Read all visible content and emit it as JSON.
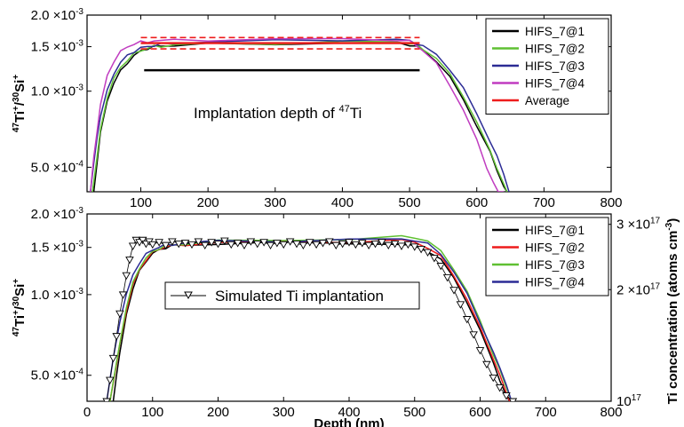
{
  "colors": {
    "black": "#000000",
    "green": "#5fc032",
    "navy": "#2c2c95",
    "magenta": "#c03cc0",
    "red": "#ee1c1c"
  },
  "chart_data": [
    {
      "type": "line",
      "panel": "top",
      "ylabel_html": "47Ti+/30Si+",
      "ylabel_parts": [
        "47",
        "Ti",
        "+",
        "/",
        "30",
        "Si",
        "+"
      ],
      "xlim": [
        20,
        800
      ],
      "ylim": [
        0.0004,
        0.002
      ],
      "yscale": "log",
      "xticks": [
        100,
        200,
        300,
        400,
        500,
        600,
        700,
        800
      ],
      "xtick_labels": [
        "100",
        "200",
        "300",
        "400",
        "500",
        "600",
        "700",
        "800"
      ],
      "yticks": [
        0.0005,
        0.001,
        0.0015,
        0.002
      ],
      "ytick_labels": [
        {
          "mantissa": "5.0",
          "exponent": "-4"
        },
        {
          "mantissa": "1.0",
          "exponent": "-3"
        },
        {
          "mantissa": "1.5",
          "exponent": "-3"
        },
        {
          "mantissa": "2.0",
          "exponent": "-3"
        }
      ],
      "series": [
        {
          "name": "HIFS_7@1",
          "color": "#000000",
          "x": [
            30,
            35,
            40,
            50,
            60,
            70,
            80,
            90,
            100,
            110,
            120,
            130,
            150,
            200,
            300,
            400,
            480,
            500,
            510,
            520,
            540,
            560,
            580,
            600,
            620,
            630,
            640,
            645
          ],
          "y": [
            0.0004,
            0.00052,
            0.00068,
            0.00092,
            0.00108,
            0.0012,
            0.0013,
            0.00138,
            0.00144,
            0.00148,
            0.0015,
            0.00151,
            0.00152,
            0.00153,
            0.00154,
            0.00155,
            0.00155,
            0.00153,
            0.0015,
            0.00145,
            0.00132,
            0.00113,
            0.00093,
            0.00073,
            0.00057,
            0.00049,
            0.00042,
            0.0004
          ]
        },
        {
          "name": "HIFS_7@2",
          "color": "#5fc032",
          "x": [
            28,
            35,
            40,
            50,
            60,
            70,
            80,
            90,
            100,
            110,
            120,
            130,
            150,
            200,
            300,
            400,
            480,
            500,
            510,
            520,
            540,
            560,
            580,
            600,
            620,
            630,
            640,
            645
          ],
          "y": [
            0.0004,
            0.00055,
            0.0007,
            0.00095,
            0.00112,
            0.00124,
            0.00133,
            0.0014,
            0.00145,
            0.00148,
            0.0015,
            0.00151,
            0.00152,
            0.00154,
            0.00155,
            0.00156,
            0.00157,
            0.00155,
            0.00152,
            0.00147,
            0.00135,
            0.00116,
            0.00096,
            0.00075,
            0.00058,
            0.0005,
            0.00043,
            0.0004
          ]
        },
        {
          "name": "HIFS_7@3",
          "color": "#2c2c95",
          "x": [
            25,
            30,
            35,
            40,
            50,
            60,
            70,
            80,
            90,
            100,
            110,
            120,
            130,
            150,
            200,
            300,
            400,
            480,
            500,
            510,
            520,
            540,
            560,
            580,
            600,
            620,
            630,
            640,
            648
          ],
          "y": [
            0.0004,
            0.00052,
            0.00066,
            0.0008,
            0.001,
            0.00118,
            0.0013,
            0.00138,
            0.00144,
            0.00148,
            0.0015,
            0.00152,
            0.00153,
            0.00155,
            0.00157,
            0.00158,
            0.0016,
            0.0016,
            0.00158,
            0.00155,
            0.0015,
            0.0014,
            0.00122,
            0.00102,
            0.00082,
            0.00063,
            0.00055,
            0.00047,
            0.0004
          ]
        },
        {
          "name": "HIFS_7@4",
          "color": "#c03cc0",
          "x": [
            25,
            30,
            35,
            40,
            50,
            60,
            70,
            80,
            90,
            100,
            110,
            120,
            150,
            200,
            300,
            400,
            480,
            500,
            510,
            520,
            540,
            560,
            580,
            600,
            615,
            625,
            632,
            640
          ],
          "y": [
            0.0004,
            0.00055,
            0.0007,
            0.00088,
            0.00115,
            0.00132,
            0.00143,
            0.0015,
            0.00154,
            0.00156,
            0.00157,
            0.00158,
            0.00159,
            0.0016,
            0.0016,
            0.00161,
            0.0016,
            0.00157,
            0.00152,
            0.00145,
            0.00128,
            0.00106,
            0.00084,
            0.00064,
            0.0005,
            0.00043,
            0.0004,
            0.0004
          ]
        },
        {
          "name": "Average",
          "color": "#ee1c1c",
          "x": [
            100,
            515
          ],
          "y": [
            0.00155,
            0.00155
          ],
          "band_upper": 0.00163,
          "band_lower": 0.00147
        }
      ],
      "implantation_bar": {
        "x": [
          105,
          515
        ],
        "y": 0.00121
      },
      "annotation": {
        "text": "Implantation depth of",
        "superscript": "47",
        "element": "Ti"
      },
      "legend_position": "top-right"
    },
    {
      "type": "line",
      "panel": "bottom",
      "xlabel": "Depth (nm)",
      "ylabel_parts": [
        "47",
        "Ti",
        "+",
        "/",
        "30",
        "Si",
        "+"
      ],
      "y2label": "Ti concentration (atoms cm",
      "y2label_sup": "-3",
      "y2label_end": ")",
      "xlim": [
        0,
        800
      ],
      "ylim": [
        0.0004,
        0.002
      ],
      "yscale": "log",
      "y2lim": [
        1e+17,
        3.2e+17
      ],
      "xticks": [
        0,
        100,
        200,
        300,
        400,
        500,
        600,
        700,
        800
      ],
      "xtick_labels": [
        "0",
        "100",
        "200",
        "300",
        "400",
        "500",
        "600",
        "700",
        "800"
      ],
      "yticks": [
        0.0005,
        0.001,
        0.0015,
        0.002
      ],
      "ytick_labels": [
        {
          "mantissa": "5.0",
          "exponent": "-4"
        },
        {
          "mantissa": "1.0",
          "exponent": "-3"
        },
        {
          "mantissa": "1.5",
          "exponent": "-3"
        },
        {
          "mantissa": "2.0",
          "exponent": "-3"
        }
      ],
      "y2ticks": [
        1e+17,
        2e+17,
        3e+17
      ],
      "y2tick_labels": [
        {
          "mantissa": "10",
          "exponent": "17",
          "times": false
        },
        {
          "mantissa": "2",
          "exponent": "17",
          "times": true
        },
        {
          "mantissa": "3",
          "exponent": "17",
          "times": true
        }
      ],
      "series": [
        {
          "name": "HIFS_7@1",
          "color": "#000000",
          "x": [
            40,
            45,
            50,
            60,
            70,
            80,
            90,
            100,
            110,
            120,
            130,
            150,
            200,
            300,
            400,
            480,
            500,
            520,
            540,
            560,
            580,
            600,
            620,
            630,
            640,
            645
          ],
          "y": [
            0.0004,
            0.0005,
            0.0006,
            0.00085,
            0.00105,
            0.00122,
            0.00134,
            0.00142,
            0.00147,
            0.0015,
            0.00152,
            0.00153,
            0.00155,
            0.00156,
            0.00156,
            0.00154,
            0.00152,
            0.00146,
            0.00135,
            0.00115,
            0.00094,
            0.00073,
            0.00056,
            0.00048,
            0.00042,
            0.0004
          ]
        },
        {
          "name": "HIFS_7@2",
          "color": "#ee1c1c",
          "x": [
            35,
            45,
            50,
            60,
            70,
            80,
            90,
            100,
            110,
            120,
            130,
            150,
            200,
            300,
            400,
            480,
            500,
            520,
            540,
            560,
            580,
            600,
            620,
            630,
            640,
            645
          ],
          "y": [
            0.0004,
            0.00055,
            0.00065,
            0.00088,
            0.00108,
            0.00124,
            0.00135,
            0.00143,
            0.00148,
            0.00151,
            0.00152,
            0.00154,
            0.00156,
            0.00157,
            0.00158,
            0.00159,
            0.00157,
            0.0015,
            0.00138,
            0.00118,
            0.00096,
            0.00075,
            0.00058,
            0.0005,
            0.00043,
            0.0004
          ]
        },
        {
          "name": "HIFS_7@3",
          "color": "#5fc032",
          "x": [
            35,
            45,
            50,
            60,
            70,
            80,
            90,
            100,
            110,
            120,
            130,
            150,
            200,
            300,
            400,
            480,
            500,
            520,
            540,
            560,
            580,
            600,
            620,
            630,
            640,
            648
          ],
          "y": [
            0.0004,
            0.00056,
            0.00066,
            0.0009,
            0.0011,
            0.00126,
            0.00137,
            0.00144,
            0.00149,
            0.00152,
            0.00153,
            0.00155,
            0.00158,
            0.0016,
            0.00161,
            0.00164,
            0.00164,
            0.00158,
            0.00145,
            0.00125,
            0.00102,
            0.0008,
            0.0006,
            0.00052,
            0.00045,
            0.0004
          ]
        },
        {
          "name": "HIFS_7@4",
          "color": "#2c2c95",
          "x": [
            30,
            40,
            50,
            60,
            70,
            80,
            90,
            100,
            110,
            120,
            130,
            150,
            200,
            300,
            400,
            480,
            500,
            520,
            540,
            560,
            580,
            600,
            620,
            630,
            640,
            648
          ],
          "y": [
            0.0004,
            0.00058,
            0.0008,
            0.001,
            0.00118,
            0.00132,
            0.00141,
            0.00147,
            0.00151,
            0.00153,
            0.00154,
            0.00156,
            0.00158,
            0.00159,
            0.0016,
            0.00161,
            0.0016,
            0.00154,
            0.00142,
            0.00122,
            0.001,
            0.00079,
            0.00061,
            0.00053,
            0.00046,
            0.0004
          ]
        }
      ],
      "simulated": {
        "name": "Simulated Ti implantation",
        "x": [
          30,
          35,
          40,
          45,
          50,
          55,
          60,
          65,
          70,
          75,
          80,
          85,
          90,
          95,
          100,
          110,
          120,
          130,
          140,
          150,
          160,
          170,
          180,
          190,
          200,
          210,
          220,
          230,
          240,
          250,
          260,
          270,
          280,
          290,
          300,
          310,
          320,
          330,
          340,
          350,
          360,
          370,
          380,
          390,
          400,
          410,
          420,
          430,
          440,
          450,
          460,
          470,
          480,
          490,
          500,
          510,
          520,
          530,
          540,
          550,
          560,
          570,
          580,
          590,
          600,
          610,
          620,
          630,
          640,
          650
        ],
        "y": [
          0.0004,
          0.00048,
          0.00058,
          0.0007,
          0.00085,
          0.001,
          0.00118,
          0.00135,
          0.00152,
          0.0016,
          0.00157,
          0.0016,
          0.00155,
          0.00158,
          0.00154,
          0.00157,
          0.00153,
          0.00158,
          0.00155,
          0.00156,
          0.00154,
          0.00158,
          0.00153,
          0.00157,
          0.00155,
          0.00159,
          0.00154,
          0.00156,
          0.00153,
          0.00158,
          0.00155,
          0.00157,
          0.00153,
          0.00156,
          0.00154,
          0.00158,
          0.00155,
          0.00153,
          0.00157,
          0.00154,
          0.00156,
          0.00158,
          0.00153,
          0.00155,
          0.00157,
          0.00154,
          0.00156,
          0.00153,
          0.00155,
          0.00157,
          0.00153,
          0.00155,
          0.00152,
          0.00154,
          0.00151,
          0.00148,
          0.00144,
          0.00137,
          0.00128,
          0.00116,
          0.00104,
          0.00092,
          0.00081,
          0.00071,
          0.00062,
          0.00055,
          0.00049,
          0.00045,
          0.00042,
          0.0004
        ]
      },
      "legend_position": "top-right"
    }
  ]
}
